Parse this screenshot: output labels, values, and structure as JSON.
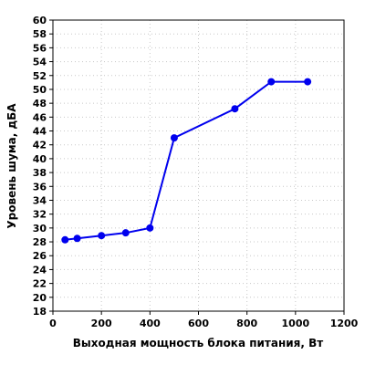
{
  "chart_data": {
    "type": "line",
    "xlabel": "Выходная мощность блока питания, Вт",
    "ylabel": "Уровень шума, дБА",
    "xlim": [
      0,
      1200
    ],
    "ylim": [
      18,
      60
    ],
    "x_ticks": [
      0,
      200,
      400,
      600,
      800,
      1000,
      1200
    ],
    "y_ticks": [
      18,
      20,
      22,
      24,
      26,
      28,
      30,
      32,
      34,
      36,
      38,
      40,
      42,
      44,
      46,
      48,
      50,
      52,
      54,
      56,
      58,
      60
    ],
    "grid": true,
    "legend": "none",
    "series": [
      {
        "color": "#0000ee",
        "x": [
          50,
          100,
          200,
          300,
          400,
          500,
          750,
          900,
          1050
        ],
        "y": [
          28.3,
          28.5,
          28.9,
          29.3,
          30.0,
          43.0,
          47.2,
          51.1,
          51.1
        ]
      }
    ]
  }
}
